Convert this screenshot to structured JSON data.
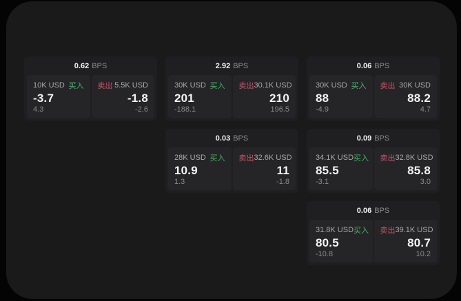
{
  "colors": {
    "outer_background": "#040404",
    "panel_background": "#1a1a1b",
    "card_background": "#1f1f21",
    "tile_background": "#252527",
    "primary_text": "#f4f4f4",
    "secondary_text": "#8a8a8a",
    "buy_green": "#4fae6d",
    "sell_red": "#c25568"
  },
  "cards": [
    {
      "bps": "0.62",
      "unit": "BPS",
      "buy": {
        "size": "10K USD",
        "side": "买入",
        "value": "-3.7",
        "delta": "4.3"
      },
      "sell": {
        "side": "卖出",
        "size": "5.5K USD",
        "value": "-1.8",
        "delta": "-2.6"
      }
    },
    {
      "bps": "2.92",
      "unit": "BPS",
      "buy": {
        "size": "30K USD",
        "side": "买入",
        "value": "201",
        "delta": "-188.1"
      },
      "sell": {
        "side": "卖出",
        "size": "30.1K USD",
        "value": "210",
        "delta": "196.5"
      }
    },
    {
      "bps": "0.06",
      "unit": "BPS",
      "buy": {
        "size": "30K USD",
        "side": "买入",
        "value": "88",
        "delta": "-4.9"
      },
      "sell": {
        "side": "卖出",
        "size": "30K USD",
        "value": "88.2",
        "delta": "4.7"
      }
    },
    {
      "bps": "0.03",
      "unit": "BPS",
      "buy": {
        "size": "28K USD",
        "side": "买入",
        "value": "10.9",
        "delta": "1.3"
      },
      "sell": {
        "side": "卖出",
        "size": "32.6K USD",
        "value": "11",
        "delta": "-1.8"
      }
    },
    {
      "bps": "0.09",
      "unit": "BPS",
      "buy": {
        "size": "34.1K USD",
        "side": "买入",
        "value": "85.5",
        "delta": "-3.1"
      },
      "sell": {
        "side": "卖出",
        "size": "32.8K USD",
        "value": "85.8",
        "delta": "3.0"
      }
    },
    {
      "bps": "0.06",
      "unit": "BPS",
      "buy": {
        "size": "31.8K USD",
        "side": "买入",
        "value": "80.5",
        "delta": "-10.8"
      },
      "sell": {
        "side": "卖出",
        "size": "39.1K USD",
        "value": "80.7",
        "delta": "10.2"
      }
    }
  ]
}
